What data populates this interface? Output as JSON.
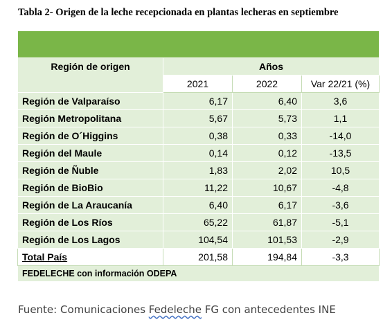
{
  "title": "Tabla 2- Origen de la leche recepcionada en plantas lecheras en septiembre",
  "table": {
    "region_header": "Región de origen",
    "years_header": "Años",
    "col_2021": "2021",
    "col_2022": "2022",
    "col_var": "Var 22/21 (%)",
    "rows": [
      {
        "region": "Región de Valparaíso",
        "v2021": "6,17",
        "v2022": "6,40",
        "var": "3,6"
      },
      {
        "region": "Región Metropolitana",
        "v2021": "5,67",
        "v2022": "5,73",
        "var": "1,1"
      },
      {
        "region": "Región de O´Higgins",
        "v2021": "0,38",
        "v2022": "0,33",
        "var": "-14,0"
      },
      {
        "region": "Región del Maule",
        "v2021": "0,14",
        "v2022": "0,12",
        "var": "-13,5"
      },
      {
        "region": "Región de Ñuble",
        "v2021": "1,83",
        "v2022": "2,02",
        "var": "10,5"
      },
      {
        "region": "Región de BioBio",
        "v2021": "11,22",
        "v2022": "10,67",
        "var": "-4,8"
      },
      {
        "region": "Región de La Araucanía",
        "v2021": "6,40",
        "v2022": "6,17",
        "var": "-3,6"
      },
      {
        "region": "Región de Los Ríos",
        "v2021": "65,22",
        "v2022": "61,87",
        "var": "-5,1"
      },
      {
        "region": "Región de Los Lagos",
        "v2021": "104,54",
        "v2022": "101,53",
        "var": "-2,9"
      }
    ],
    "total": {
      "region": "Total País",
      "v2021": "201,58",
      "v2022": "194,84",
      "var": "-3,3"
    },
    "footnote": "FEDELECHE con información ODEPA"
  },
  "source": {
    "prefix": "Fuente: Comunicaciones ",
    "underlined": "Fedeleche",
    "suffix": " FG con antecedentes INE"
  },
  "colors": {
    "band": "#7ab648",
    "light_green": "#e2efd9"
  }
}
